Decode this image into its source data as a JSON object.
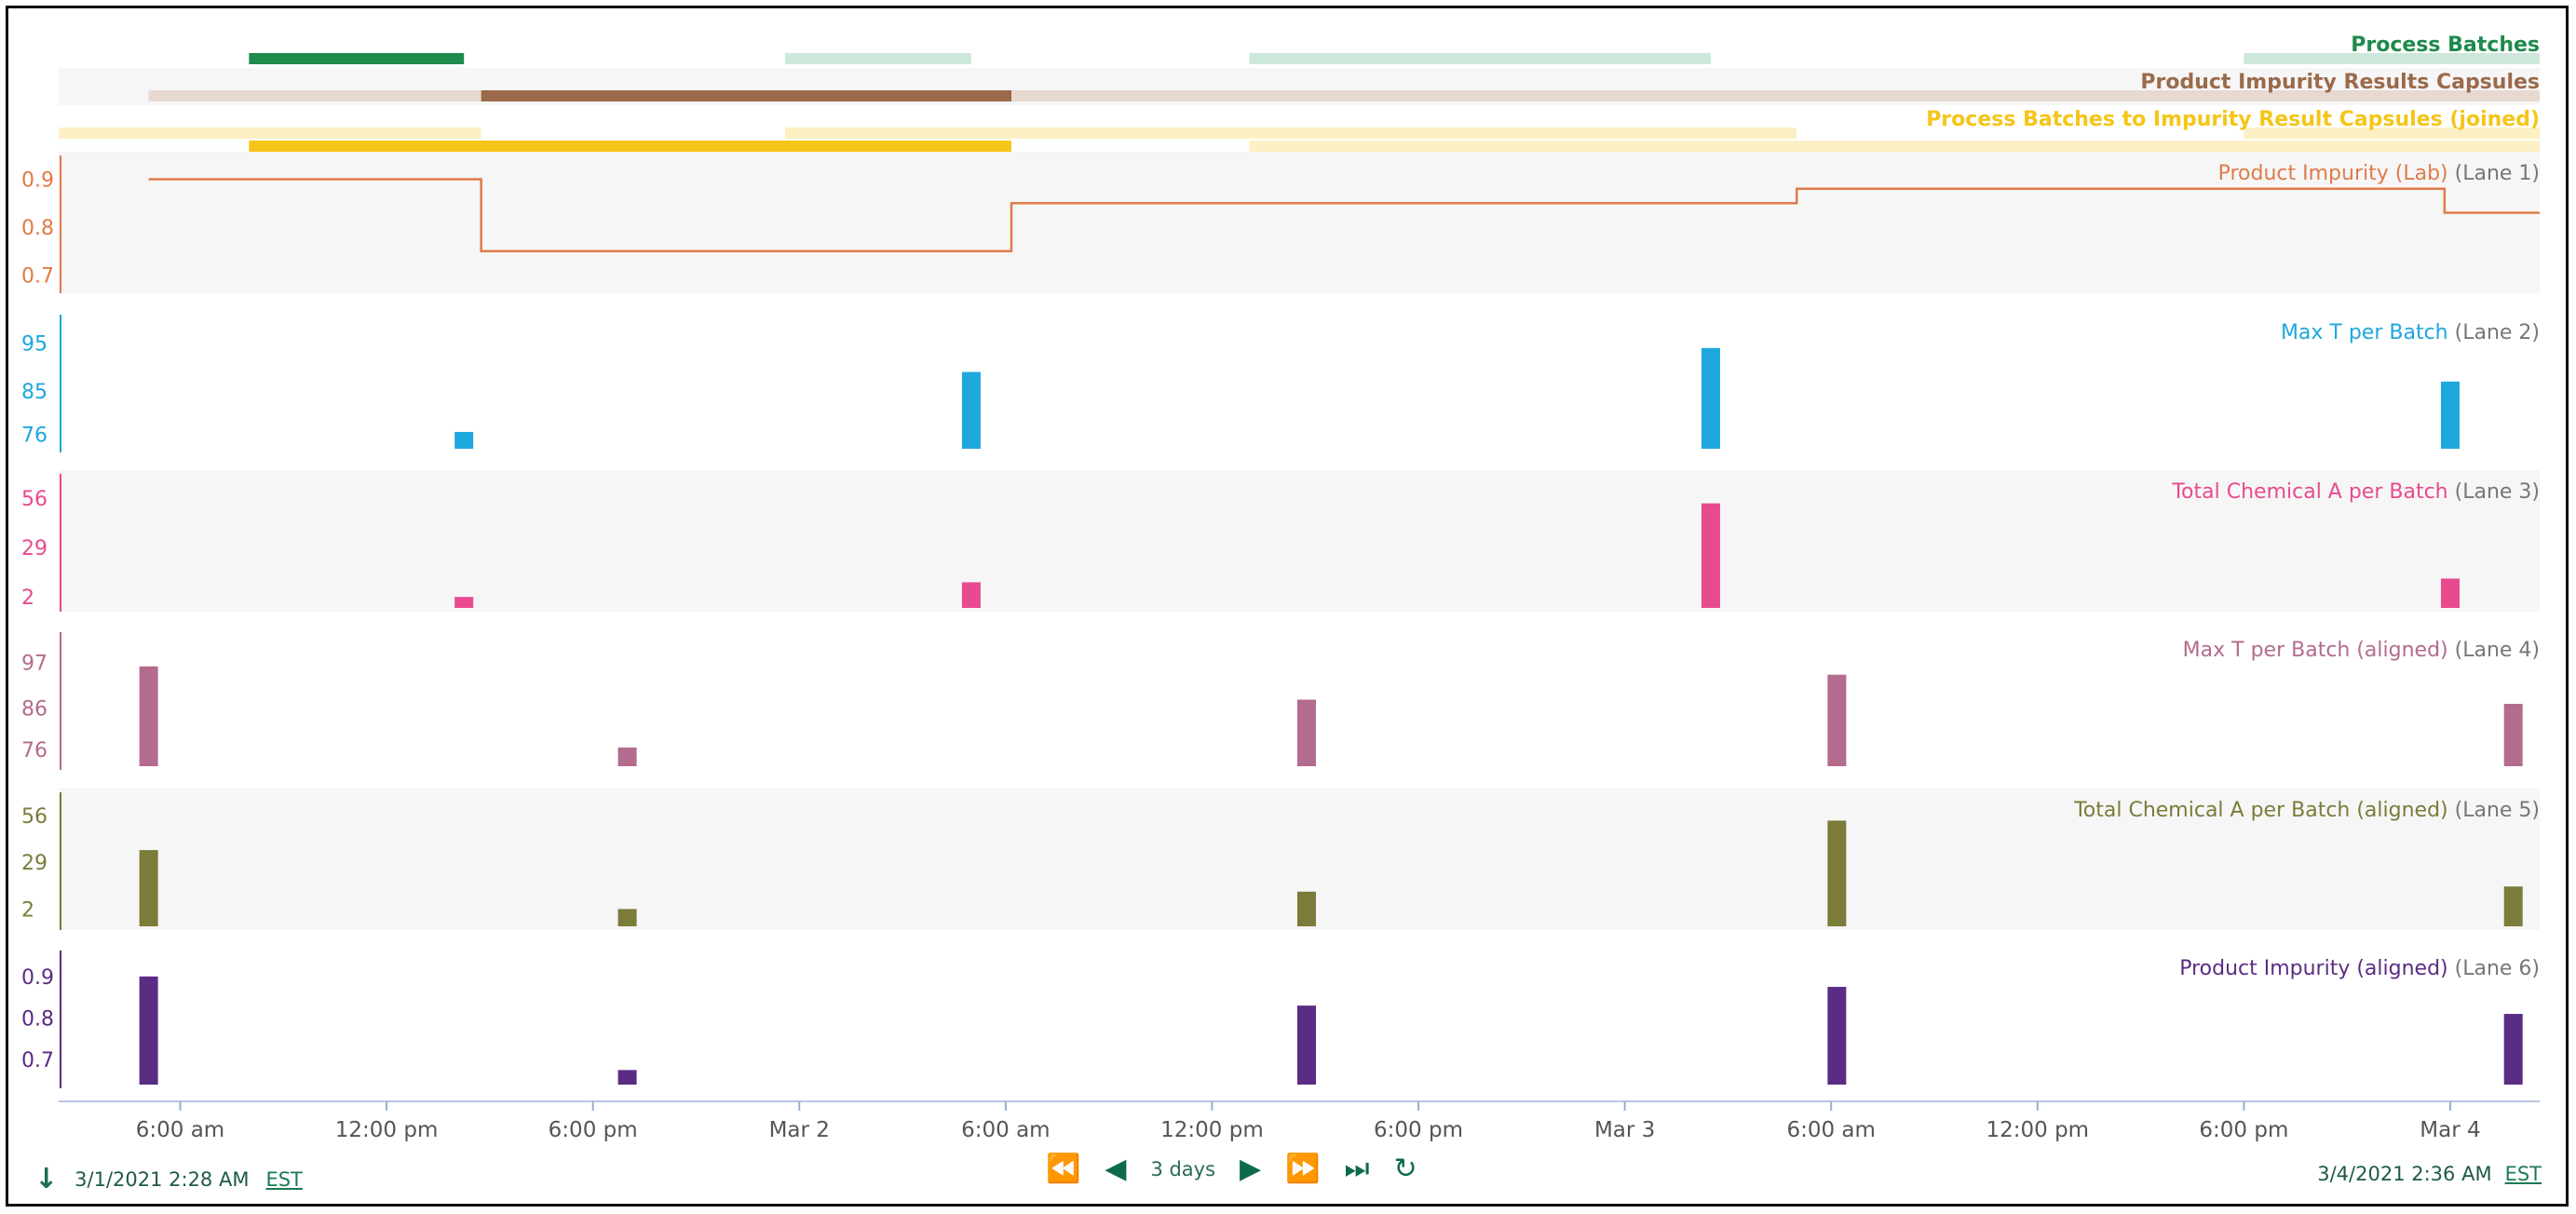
{
  "chart_data": {
    "type": "swimlane-timeline",
    "x_range": [
      "2021-03-01T02:28",
      "2021-03-04T02:36"
    ],
    "x_ticks": [
      {
        "label": "6:00 am",
        "t": "2021-03-01T06:00"
      },
      {
        "label": "12:00 pm",
        "t": "2021-03-01T12:00"
      },
      {
        "label": "6:00 pm",
        "t": "2021-03-01T18:00"
      },
      {
        "label": "Mar 2",
        "t": "2021-03-02T00:00"
      },
      {
        "label": "6:00 am",
        "t": "2021-03-02T06:00"
      },
      {
        "label": "12:00 pm",
        "t": "2021-03-02T12:00"
      },
      {
        "label": "6:00 pm",
        "t": "2021-03-02T18:00"
      },
      {
        "label": "Mar 3",
        "t": "2021-03-03T00:00"
      },
      {
        "label": "6:00 am",
        "t": "2021-03-03T06:00"
      },
      {
        "label": "12:00 pm",
        "t": "2021-03-03T12:00"
      },
      {
        "label": "6:00 pm",
        "t": "2021-03-03T18:00"
      },
      {
        "label": "Mar 4",
        "t": "2021-03-04T00:00"
      }
    ],
    "capsule_rows": [
      {
        "name": "Process Batches",
        "color": "#1e8a4c",
        "light_color": "#cde8da",
        "capsules": [
          {
            "start": "2021-03-01T08:00",
            "end": "2021-03-01T14:15",
            "highlight": true
          },
          {
            "start": "2021-03-01T23:35",
            "end": "2021-03-02T05:00",
            "highlight": false
          },
          {
            "start": "2021-03-02T13:05",
            "end": "2021-03-03T02:30",
            "highlight": false
          },
          {
            "start": "2021-03-03T18:00",
            "end": "2021-03-04T02:36",
            "highlight": false
          }
        ]
      },
      {
        "name": "Product Impurity Results Capsules",
        "color": "#9b6a4a",
        "light_color": "#e7d9cf",
        "capsules": [
          {
            "start": "2021-03-01T05:05",
            "end": "2021-03-01T14:45",
            "highlight": false
          },
          {
            "start": "2021-03-01T14:45",
            "end": "2021-03-02T06:10",
            "highlight": true
          },
          {
            "start": "2021-03-02T06:10",
            "end": "2021-03-04T02:36",
            "highlight": false
          }
        ]
      },
      {
        "name": "Process Batches to Impurity Result Capsules (joined)",
        "color": "#f5c518",
        "light_color": "#fdf0c4",
        "capsules": [
          {
            "start": "2021-03-01T02:28",
            "end": "2021-03-01T14:45",
            "highlight": false,
            "sub": 0
          },
          {
            "start": "2021-03-01T08:00",
            "end": "2021-03-02T06:10",
            "highlight": true,
            "sub": 1
          },
          {
            "start": "2021-03-01T23:35",
            "end": "2021-03-03T05:00",
            "highlight": false,
            "sub": 0
          },
          {
            "start": "2021-03-02T13:05",
            "end": "2021-03-04T02:36",
            "highlight": false,
            "sub": 1
          },
          {
            "start": "2021-03-03T18:00",
            "end": "2021-03-04T02:36",
            "highlight": false,
            "sub": 0
          }
        ]
      }
    ],
    "lanes": [
      {
        "series_name": "Product Impurity (Lab)",
        "lane_label": "(Lane 1)",
        "color": "#e07b4a",
        "type": "step",
        "y_ticks": [
          0.7,
          0.8,
          0.9
        ],
        "y_range": [
          0.67,
          0.93
        ],
        "points": [
          {
            "t": "2021-03-01T05:05",
            "v": 0.9
          },
          {
            "t": "2021-03-01T14:45",
            "v": 0.75
          },
          {
            "t": "2021-03-02T06:10",
            "v": 0.85
          },
          {
            "t": "2021-03-03T05:00",
            "v": 0.88
          },
          {
            "t": "2021-03-03T23:50",
            "v": 0.83
          },
          {
            "t": "2021-03-04T02:36",
            "v": 0.83
          }
        ]
      },
      {
        "series_name": "Max T per Batch",
        "lane_label": "(Lane 2)",
        "color": "#1ea7dc",
        "type": "bar",
        "y_ticks": [
          76,
          85,
          95
        ],
        "y_range": [
          73,
          99
        ],
        "bars": [
          {
            "t": "2021-03-01T14:15",
            "v": 76.5
          },
          {
            "t": "2021-03-02T05:00",
            "v": 89
          },
          {
            "t": "2021-03-03T02:30",
            "v": 94
          },
          {
            "t": "2021-03-04T00:00",
            "v": 87
          }
        ]
      },
      {
        "series_name": "Total Chemical A per Batch",
        "lane_label": "(Lane 3)",
        "color": "#e84a8f",
        "type": "bar",
        "y_ticks": [
          2,
          29,
          56
        ],
        "y_range": [
          -4,
          64
        ],
        "bars": [
          {
            "t": "2021-03-01T14:15",
            "v": 2
          },
          {
            "t": "2021-03-02T05:00",
            "v": 10
          },
          {
            "t": "2021-03-03T02:30",
            "v": 53
          },
          {
            "t": "2021-03-04T00:00",
            "v": 12
          }
        ]
      },
      {
        "series_name": "Max T per Batch (aligned)",
        "lane_label": "(Lane 4)",
        "color": "#b36b8e",
        "type": "bar",
        "y_ticks": [
          76,
          86,
          97
        ],
        "y_range": [
          72,
          102
        ],
        "bars": [
          {
            "t": "2021-03-01T05:05",
            "v": 96
          },
          {
            "t": "2021-03-01T19:00",
            "v": 76.5
          },
          {
            "t": "2021-03-02T14:45",
            "v": 88
          },
          {
            "t": "2021-03-03T06:10",
            "v": 94
          },
          {
            "t": "2021-03-04T01:50",
            "v": 87
          }
        ]
      },
      {
        "series_name": "Total Chemical A per Batch (aligned)",
        "lane_label": "(Lane 5)",
        "color": "#7b7b3a",
        "type": "bar",
        "y_ticks": [
          2,
          29,
          56
        ],
        "y_range": [
          -8,
          64
        ],
        "bars": [
          {
            "t": "2021-03-01T05:05",
            "v": 36
          },
          {
            "t": "2021-03-01T19:00",
            "v": 2
          },
          {
            "t": "2021-03-02T14:45",
            "v": 12
          },
          {
            "t": "2021-03-03T06:10",
            "v": 53
          },
          {
            "t": "2021-03-04T01:50",
            "v": 15
          }
        ]
      },
      {
        "series_name": "Product Impurity (aligned)",
        "lane_label": "(Lane 6)",
        "color": "#5b2c84",
        "type": "bar",
        "y_ticks": [
          0.7,
          0.8,
          0.9
        ],
        "y_range": [
          0.64,
          0.94
        ],
        "bars": [
          {
            "t": "2021-03-01T05:05",
            "v": 0.9
          },
          {
            "t": "2021-03-01T19:00",
            "v": 0.675
          },
          {
            "t": "2021-03-02T14:45",
            "v": 0.83
          },
          {
            "t": "2021-03-03T06:10",
            "v": 0.875
          },
          {
            "t": "2021-03-04T01:50",
            "v": 0.81
          }
        ]
      }
    ]
  },
  "footer": {
    "start_time": "3/1/2021 2:28 AM",
    "start_tz": "EST",
    "end_time": "3/4/2021 2:36 AM",
    "end_tz": "EST",
    "range_label": "3 days"
  },
  "nav": {
    "back_step_icon": "⏪",
    "back_icon": "◀",
    "forward_icon": "▶",
    "forward_step_icon": "⏩",
    "jump_end_icon": "⏭",
    "refresh_icon": "↻",
    "export_icon": "↓"
  }
}
